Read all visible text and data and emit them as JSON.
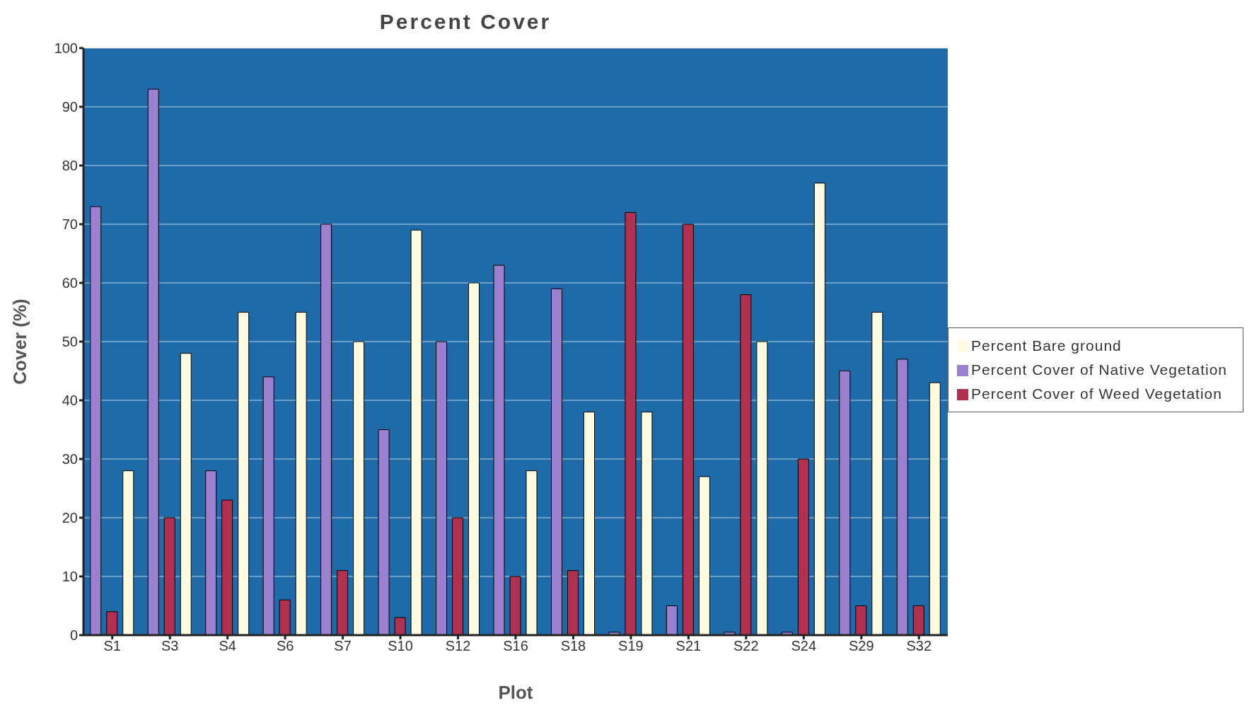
{
  "chart_data": {
    "type": "bar",
    "title": "Percent Cover",
    "xlabel": "Plot",
    "ylabel": "Cover (%)",
    "categories": [
      "S1",
      "S3",
      "S4",
      "S6",
      "S7",
      "S10",
      "S12",
      "S16",
      "S18",
      "S19",
      "S21",
      "S22",
      "S24",
      "S29",
      "S32"
    ],
    "series": [
      {
        "name": "Percent Cover of Native Vegetation",
        "color": "#9b80cf",
        "values": [
          73,
          93,
          28,
          44,
          70,
          35,
          50,
          63,
          59,
          0.5,
          5,
          0.5,
          0.5,
          45,
          47
        ]
      },
      {
        "name": "Percent Cover of Weed Vegetation",
        "color": "#b0304f",
        "values": [
          4,
          20,
          23,
          6,
          11,
          3,
          20,
          10,
          11,
          72,
          70,
          58,
          30,
          5,
          5
        ]
      },
      {
        "name": "Percent Bare ground",
        "color": "#fffbe0",
        "values": [
          28,
          48,
          55,
          55,
          50,
          69,
          60,
          28,
          38,
          38,
          27,
          50,
          77,
          55,
          43
        ]
      }
    ],
    "ylim": [
      0,
      100
    ],
    "yticks": [
      0,
      10,
      20,
      30,
      40,
      50,
      60,
      70,
      80,
      90,
      100
    ],
    "grid": "y",
    "legend": "right"
  }
}
